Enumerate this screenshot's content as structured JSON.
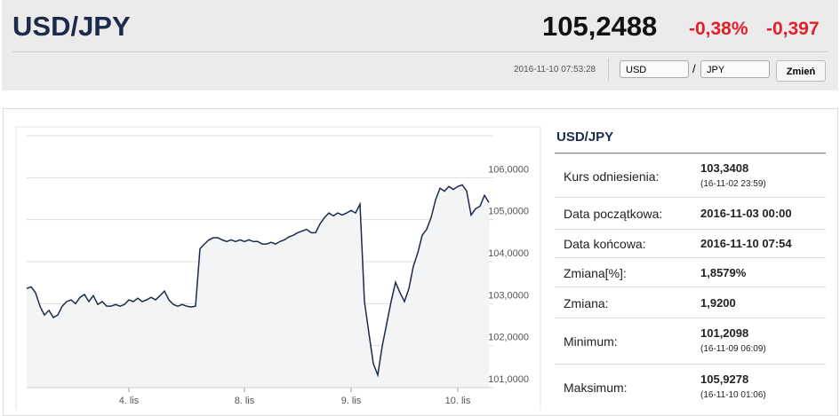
{
  "header": {
    "title": "USD/JPY",
    "price": "105,2488",
    "change_pct": "-0,38%",
    "change": "-0,397",
    "timestamp": "2016-11-10 07:53:28",
    "base_currency": "USD",
    "separator": "/",
    "quote_currency": "JPY",
    "button": "Zmień"
  },
  "table": {
    "title": "USD/JPY",
    "rows": [
      {
        "label": "Kurs odniesienia:",
        "value": "103,3408",
        "note": "(16-11-02 23:59)"
      },
      {
        "label": "Data początkowa:",
        "value": "2016-11-03 00:00"
      },
      {
        "label": "Data końcowa:",
        "value": "2016-11-10 07:54"
      },
      {
        "label": "Zmiana[%]:",
        "value": "1,8579%"
      },
      {
        "label": "Zmiana:",
        "value": "1,9200"
      },
      {
        "label": "Minimum:",
        "value": "101,2098",
        "note": "(16-11-09 06:09)"
      },
      {
        "label": "Maksimum:",
        "value": "105,9278",
        "note": "(16-11-10 01:06)"
      }
    ]
  },
  "chart_data": {
    "type": "line",
    "color": "#1c2b4b",
    "area_color": "#f3f4f6",
    "grid": true,
    "values": [
      103.36,
      103.4,
      103.26,
      102.94,
      102.73,
      102.84,
      102.67,
      102.73,
      102.94,
      103.05,
      103.09,
      103.0,
      103.15,
      103.22,
      103.05,
      103.19,
      102.98,
      103.05,
      102.94,
      102.94,
      102.98,
      102.94,
      102.98,
      103.09,
      103.05,
      103.13,
      103.05,
      103.09,
      103.15,
      103.09,
      103.19,
      103.3,
      103.09,
      102.98,
      102.94,
      102.98,
      102.94,
      102.92,
      102.94,
      104.31,
      104.42,
      104.52,
      104.57,
      104.57,
      104.52,
      104.48,
      104.52,
      104.48,
      104.52,
      104.48,
      104.52,
      104.48,
      104.48,
      104.42,
      104.42,
      104.46,
      104.42,
      104.48,
      104.52,
      104.59,
      104.63,
      104.69,
      104.73,
      104.77,
      104.69,
      104.69,
      104.9,
      105.05,
      105.16,
      105.09,
      105.16,
      105.11,
      105.16,
      105.22,
      105.16,
      105.37,
      103.05,
      102.3,
      101.57,
      101.3,
      101.99,
      102.52,
      103.05,
      103.51,
      103.26,
      103.05,
      103.36,
      103.89,
      104.21,
      104.63,
      104.77,
      105.05,
      105.47,
      105.75,
      105.68,
      105.79,
      105.72,
      105.79,
      105.83,
      105.68,
      105.11,
      105.26,
      105.32,
      105.58,
      105.41
    ],
    "xlim": [
      0,
      104
    ],
    "xticks": [
      {
        "value": 23,
        "label": "4. lis"
      },
      {
        "value": 49,
        "label": "8. lis"
      },
      {
        "value": 73,
        "label": "9. lis"
      },
      {
        "value": 97,
        "label": "10. lis"
      }
    ],
    "ylim": [
      101,
      107
    ],
    "yticks": [
      {
        "value": 101,
        "label": "101,0000"
      },
      {
        "value": 102,
        "label": "102,0000"
      },
      {
        "value": 103,
        "label": "103,0000"
      },
      {
        "value": 104,
        "label": "104,0000"
      },
      {
        "value": 105,
        "label": "105,0000"
      },
      {
        "value": 106,
        "label": "106,0000"
      }
    ]
  }
}
